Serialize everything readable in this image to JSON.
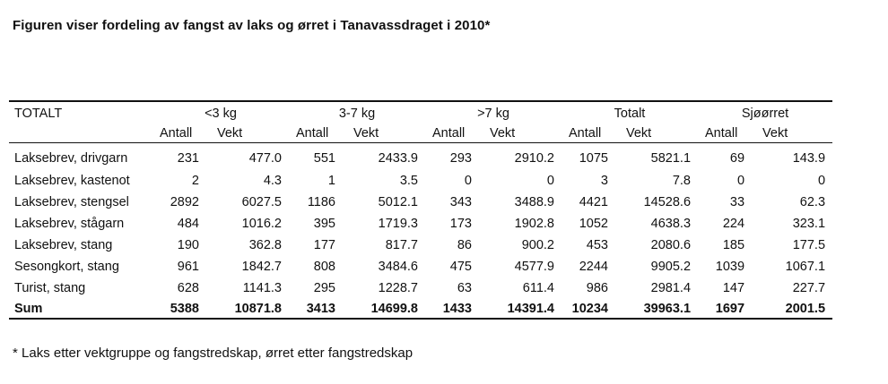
{
  "title": "Figuren viser fordeling av fangst av laks og ørret i Tanavassdraget i 2010*",
  "table": {
    "corner_label": "TOTALT",
    "groups": [
      "<3 kg",
      "3-7 kg",
      ">7 kg",
      "Totalt",
      "Sjøørret"
    ],
    "subheaders": [
      "Antall",
      "Vekt"
    ],
    "rows": [
      {
        "label": "Laksebrev, drivgarn",
        "values": [
          "231",
          "477.0",
          "551",
          "2433.9",
          "293",
          "2910.2",
          "1075",
          "5821.1",
          "69",
          "143.9"
        ]
      },
      {
        "label": "Laksebrev, kastenot",
        "values": [
          "2",
          "4.3",
          "1",
          "3.5",
          "0",
          "0",
          "3",
          "7.8",
          "0",
          "0"
        ]
      },
      {
        "label": "Laksebrev, stengsel",
        "values": [
          "2892",
          "6027.5",
          "1186",
          "5012.1",
          "343",
          "3488.9",
          "4421",
          "14528.6",
          "33",
          "62.3"
        ]
      },
      {
        "label": "Laksebrev, stågarn",
        "values": [
          "484",
          "1016.2",
          "395",
          "1719.3",
          "173",
          "1902.8",
          "1052",
          "4638.3",
          "224",
          "323.1"
        ]
      },
      {
        "label": "Laksebrev, stang",
        "values": [
          "190",
          "362.8",
          "177",
          "817.7",
          "86",
          "900.2",
          "453",
          "2080.6",
          "185",
          "177.5"
        ]
      },
      {
        "label": "Sesongkort, stang",
        "values": [
          "961",
          "1842.7",
          "808",
          "3484.6",
          "475",
          "4577.9",
          "2244",
          "9905.2",
          "1039",
          "1067.1"
        ]
      },
      {
        "label": "Turist, stang",
        "values": [
          "628",
          "1141.3",
          "295",
          "1228.7",
          "63",
          "611.4",
          "986",
          "2981.4",
          "147",
          "227.7"
        ]
      }
    ],
    "sum_row": {
      "label": "Sum",
      "values": [
        "5388",
        "10871.8",
        "3413",
        "14699.8",
        "1433",
        "14391.4",
        "10234",
        "39963.1",
        "1697",
        "2001.5"
      ]
    }
  },
  "footnote": "* Laks etter vektgruppe og fangstredskap, ørret etter fangstredskap"
}
